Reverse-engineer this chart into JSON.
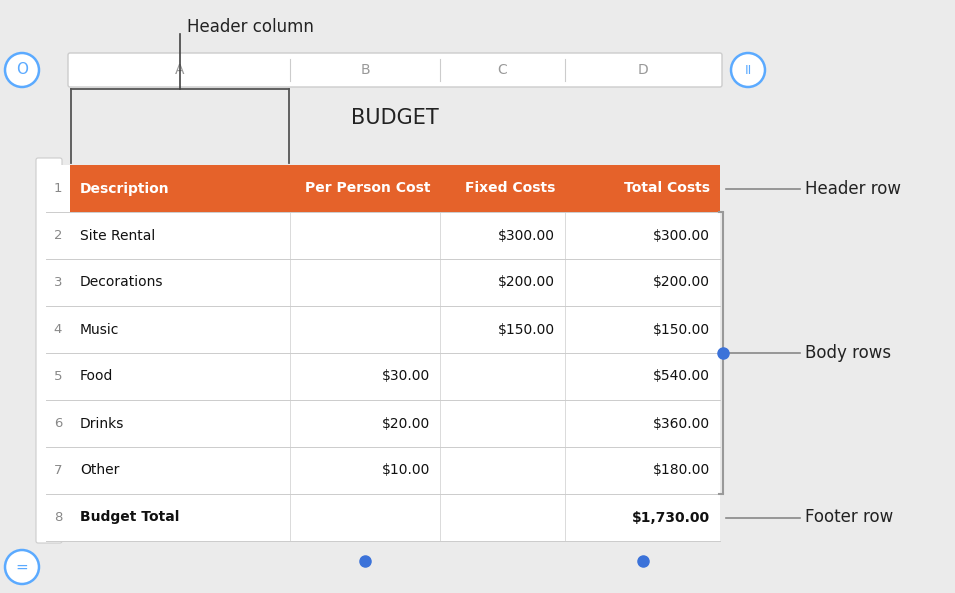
{
  "title": "BUDGET",
  "col_headers": [
    "A",
    "B",
    "C",
    "D"
  ],
  "row_numbers": [
    "1",
    "2",
    "3",
    "4",
    "5",
    "6",
    "7",
    "8"
  ],
  "header_row": [
    "Description",
    "Per Person Cost",
    "Fixed Costs",
    "Total Costs"
  ],
  "body_rows": [
    [
      "Site Rental",
      "",
      "$300.00",
      "$300.00"
    ],
    [
      "Decorations",
      "",
      "$200.00",
      "$200.00"
    ],
    [
      "Music",
      "",
      "$150.00",
      "$150.00"
    ],
    [
      "Food",
      "$30.00",
      "",
      "$540.00"
    ],
    [
      "Drinks",
      "$20.00",
      "",
      "$360.00"
    ],
    [
      "Other",
      "$10.00",
      "",
      "$180.00"
    ]
  ],
  "footer_row": [
    "Budget Total",
    "",
    "",
    "$1,730.00"
  ],
  "header_row_color": "#E5622A",
  "header_text_color": "#FFFFFF",
  "body_bg_color": "#FFFFFF",
  "body_text_color": "#111111",
  "footer_bg_color": "#FFFFFF",
  "footer_text_color": "#111111",
  "border_color": "#CCCCCC",
  "row_num_color": "#888888",
  "col_header_color": "#999999",
  "bg_color": "#EBEBEB",
  "dot_color": "#3B72D9",
  "annot_color": "#333333",
  "line_color": "#888888"
}
